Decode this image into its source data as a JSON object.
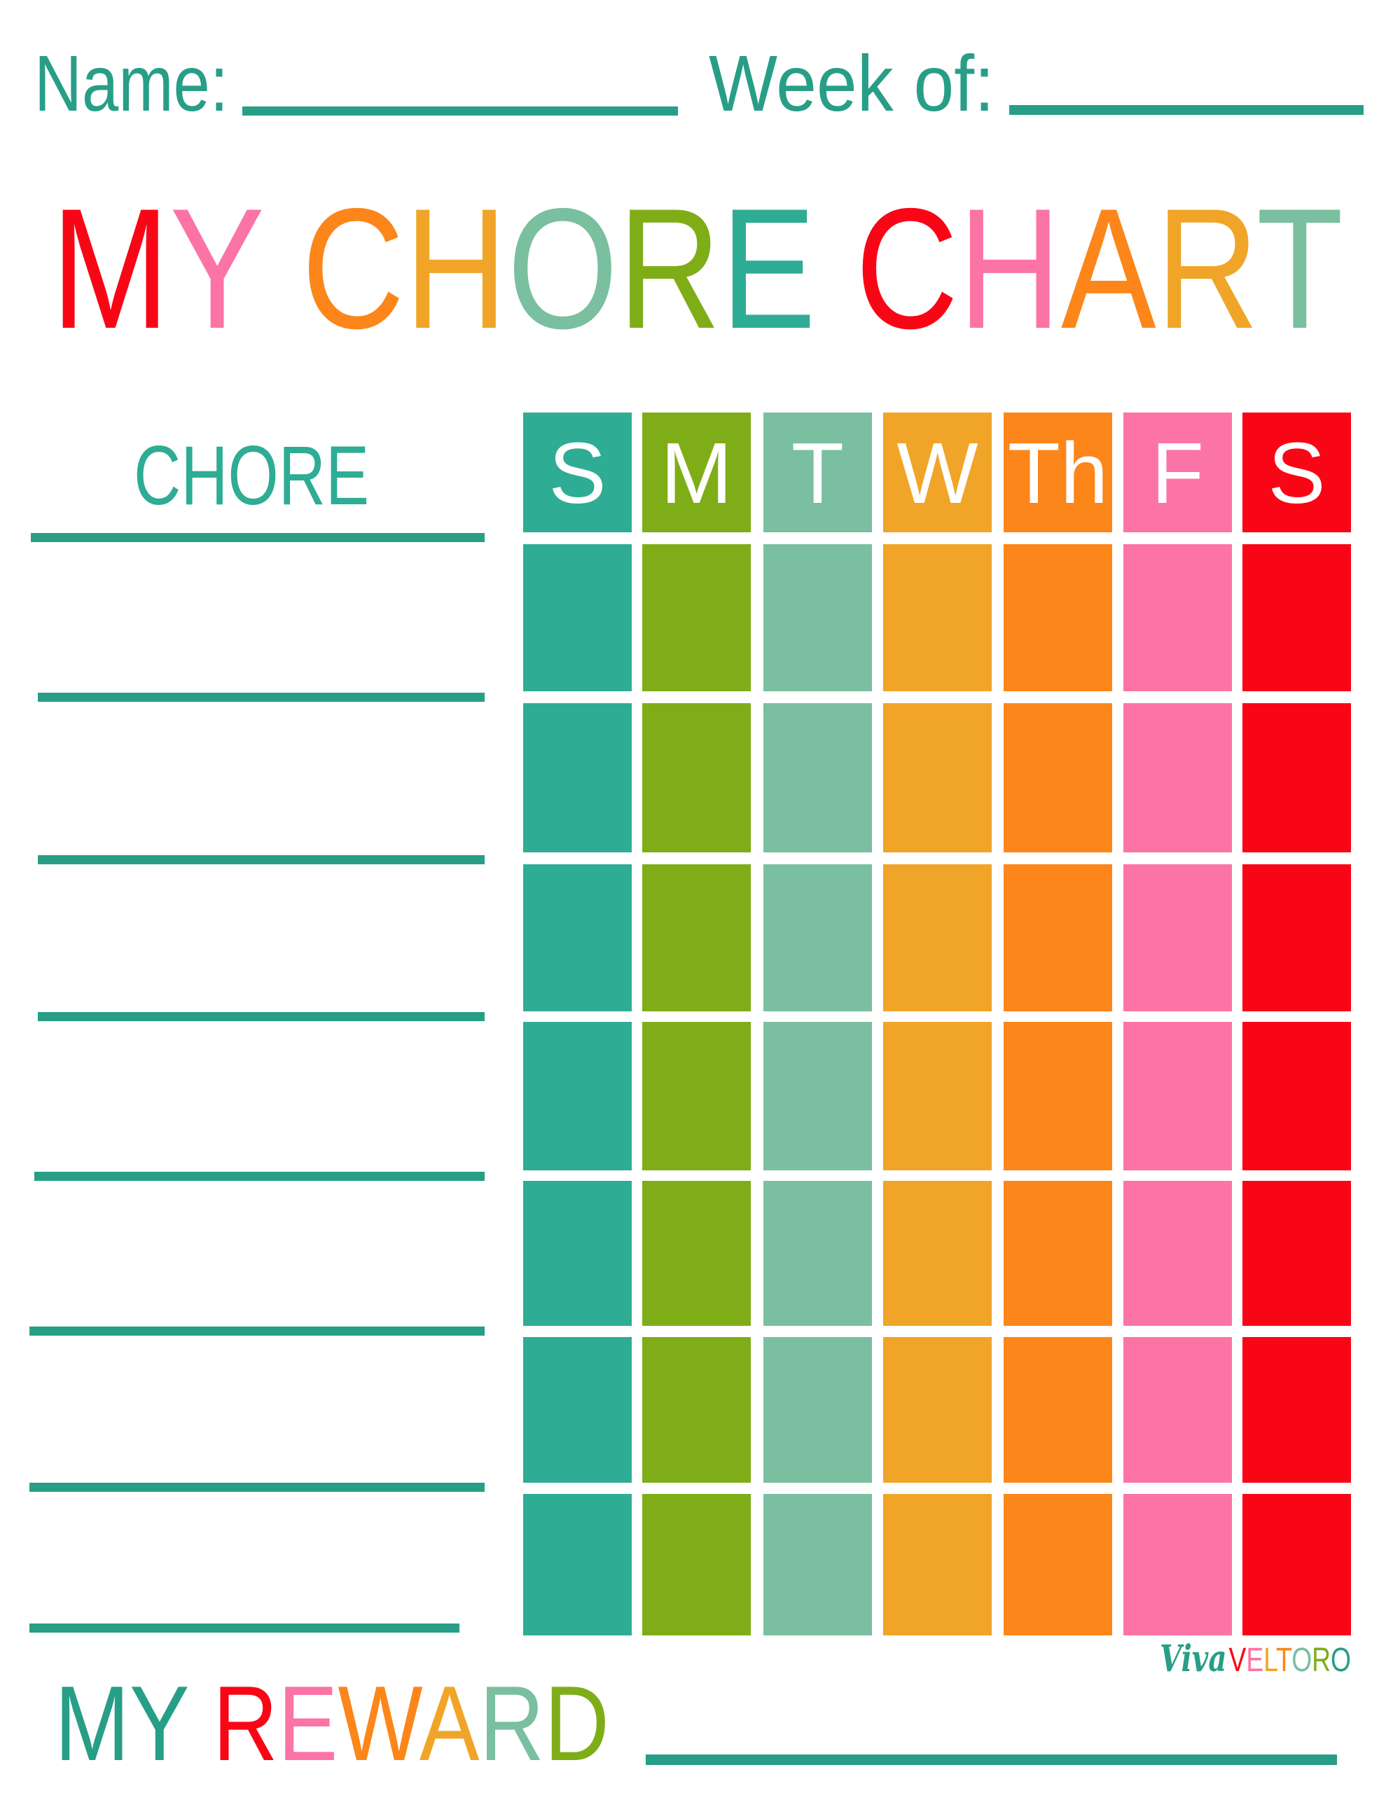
{
  "header": {
    "name_label": "Name:",
    "week_label": "Week of:"
  },
  "title": {
    "text": "MY CHORE CHART",
    "letter_colors": [
      "#f90616",
      "#fb74a5",
      "",
      "#fc8619",
      "#f0a528",
      "#7abf9f",
      "#7fad18",
      "#2eac94",
      "",
      "#f90616",
      "#fb74a5",
      "#fc8619",
      "#f0a528",
      "#7abf9f"
    ]
  },
  "chore_header": "CHORE",
  "days": [
    {
      "label": "S",
      "color": "#2eac94"
    },
    {
      "label": "M",
      "color": "#7fad18"
    },
    {
      "label": "T",
      "color": "#7abf9f"
    },
    {
      "label": "W",
      "color": "#f0a528"
    },
    {
      "label": "Th",
      "color": "#fc8619"
    },
    {
      "label": "F",
      "color": "#fb74a5"
    },
    {
      "label": "S",
      "color": "#f90616"
    }
  ],
  "chore_rows": 7,
  "reward": {
    "text": "MY REWARD",
    "letter_colors": [
      "#289e87",
      "#289e87",
      "",
      "#f90616",
      "#fb74a5",
      "#fc8619",
      "#f0a528",
      "#7abf9f",
      "#7fad18"
    ]
  },
  "logo": {
    "script": "Viva",
    "caps": "VELTORO",
    "script_color": "#289e87",
    "caps_colors": [
      "#f90616",
      "#fb74a5",
      "#f0a528",
      "#fc8619",
      "#7abf9f",
      "#7fad18",
      "#289e87"
    ]
  },
  "colors": {
    "line": "#289e87",
    "text": "#289e87"
  }
}
